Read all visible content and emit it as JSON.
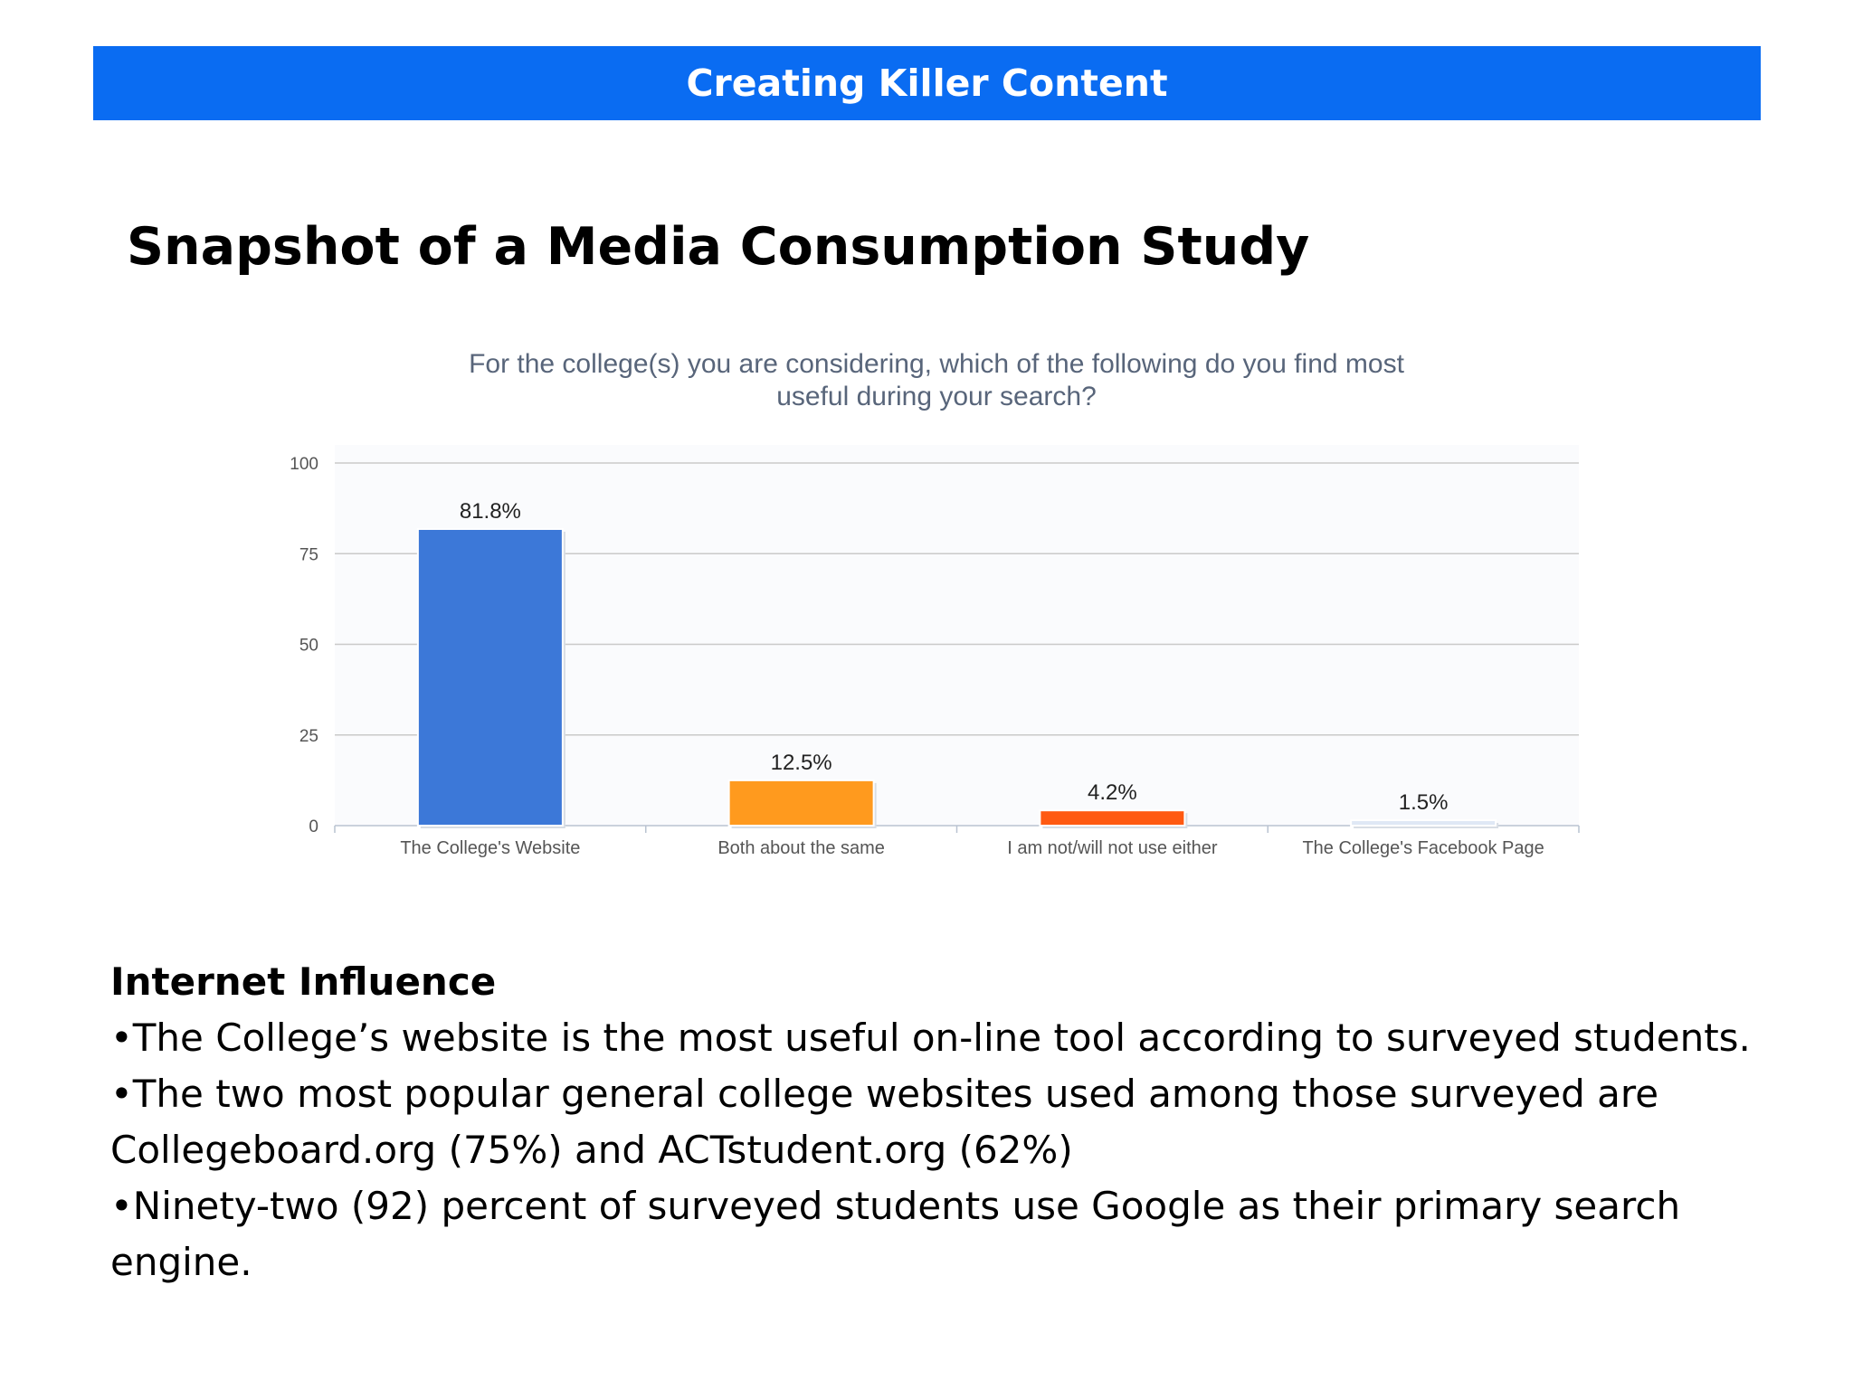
{
  "header": {
    "title": "Creating Killer Content"
  },
  "slide": {
    "title": "Snapshot of a Media Consumption Study"
  },
  "chart_data": {
    "type": "bar",
    "title_lines": [
      "For the college(s) you are considering, which of the following do you find most",
      "useful during your search?"
    ],
    "categories": [
      "The College's Website",
      "Both about the same",
      "I am not/will not use either",
      "The College's Facebook Page"
    ],
    "values": [
      81.8,
      12.5,
      4.2,
      1.5
    ],
    "data_labels": [
      "81.8%",
      "12.5%",
      "4.2%",
      "1.5%"
    ],
    "colors": [
      "#3c78d8",
      "#ff9a1e",
      "#ff5a12",
      "#dfe8f5"
    ],
    "ylim": [
      0,
      100
    ],
    "yticks": [
      "0",
      "25",
      "50",
      "75",
      "100"
    ],
    "grid": true,
    "xlabel": "",
    "ylabel": ""
  },
  "body": {
    "heading": "Internet Influence",
    "bullets": [
      "•The College’s website is the most useful on-line tool according to surveyed students.",
      "•The two most popular general college websites used among those surveyed are Collegeboard.org (75%) and ACTstudent.org (62%)",
      "•Ninety-two (92) percent of surveyed students use Google as their primary search engine."
    ]
  }
}
